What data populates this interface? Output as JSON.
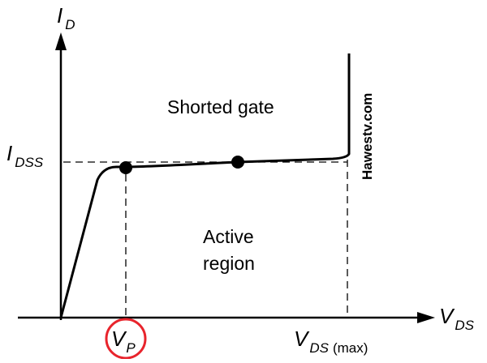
{
  "labels": {
    "y_axis_main": "I",
    "y_axis_sub": "D",
    "x_axis_main": "V",
    "x_axis_sub": "DS",
    "idss_main": "I",
    "idss_sub": "DSS",
    "vp_main": "V",
    "vp_sub": "P",
    "vdsmax_main": "V",
    "vdsmax_sub": "DS",
    "vdsmax_paren": "(max)",
    "region_top": "Shorted gate",
    "region_active_line1": "Active",
    "region_active_line2": "region",
    "watermark": "Hawestv.com"
  },
  "colors": {
    "line": "#000000",
    "highlight": "#e8242c",
    "background": "#ffffff"
  }
}
